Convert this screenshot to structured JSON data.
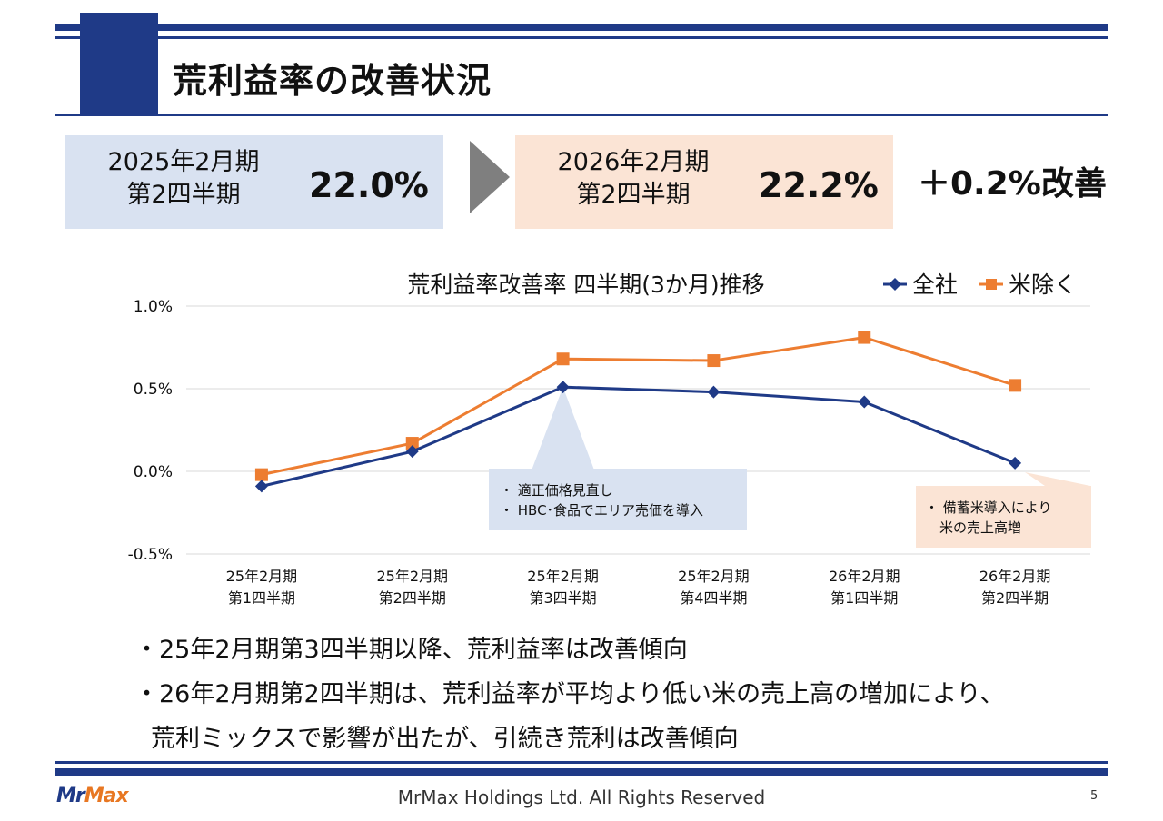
{
  "header": {
    "title": "荒利益率の改善状況"
  },
  "comparison": {
    "before": {
      "period_line1": "2025年2月期",
      "period_line2": "第2四半期",
      "value": "22.0%",
      "bg": "#d9e2f1"
    },
    "after": {
      "period_line1": "2026年2月期",
      "period_line2": "第2四半期",
      "value": "22.2%",
      "bg": "#fbe4d5"
    },
    "improvement": "＋0.2%改善"
  },
  "chart_data": {
    "type": "line",
    "title": "荒利益率改善率  四半期(3か月)推移",
    "categories": [
      [
        "25年2月期",
        "第1四半期"
      ],
      [
        "25年2月期",
        "第2四半期"
      ],
      [
        "25年2月期",
        "第3四半期"
      ],
      [
        "25年2月期",
        "第4四半期"
      ],
      [
        "26年2月期",
        "第1四半期"
      ],
      [
        "26年2月期",
        "第2四半期"
      ]
    ],
    "series": [
      {
        "name": "全社",
        "color": "#1f3a87",
        "marker": "diamond",
        "values": [
          -0.09,
          0.12,
          0.51,
          0.48,
          0.42,
          0.05
        ]
      },
      {
        "name": "米除く",
        "color": "#ed7d31",
        "marker": "square",
        "values": [
          -0.02,
          0.17,
          0.68,
          0.67,
          0.81,
          0.52
        ]
      }
    ],
    "yticks": [
      "1.0%",
      "0.5%",
      "0.0%",
      "-0.5%"
    ],
    "ytick_values": [
      1.0,
      0.5,
      0.0,
      -0.5
    ],
    "ylim": [
      -0.5,
      1.0
    ],
    "annotations": [
      {
        "lines": [
          "・ 適正価格見直し",
          "・ HBC･食品でエリア売価を導入"
        ],
        "bg": "#d9e2f1"
      },
      {
        "lines": [
          "・ 備蓄米導入により",
          "米の売上高増"
        ],
        "bg": "#fbe4d5"
      }
    ]
  },
  "bullets": [
    "・25年2月期第3四半期以降、荒利益率は改善傾向",
    "・26年2月期第2四半期は、荒利益率が平均より低い米の売上高の増加により、",
    "荒利ミックスで影響が出たが、引続き荒利は改善傾向"
  ],
  "footer": {
    "logo_part1": "Mr",
    "logo_part2": "Max",
    "copyright": "MrMax Holdings Ltd. All Rights Reserved",
    "page_number": "5"
  }
}
